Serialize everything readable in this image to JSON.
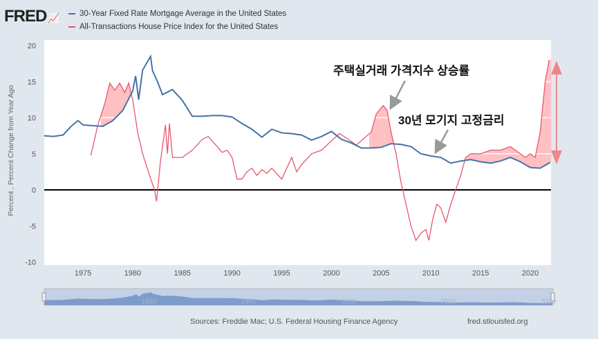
{
  "header": {
    "logo": "FRED"
  },
  "colors": {
    "mortgage": "#4572a7",
    "hpi": "#e8556a",
    "fill": "#ffc0c4",
    "background": "#e1e7ef"
  },
  "chart_data": {
    "type": "line",
    "ylabel": "Percent , Percent Change from Year Ago",
    "ylim": [
      -10,
      20
    ],
    "xlim": [
      1971.1,
      2022.1
    ],
    "yticks": [
      "20",
      "15",
      "10",
      "5",
      "0",
      "-5",
      "-10"
    ],
    "xticks": [
      "1975",
      "1980",
      "1985",
      "1990",
      "1995",
      "2000",
      "2005",
      "2010",
      "2015",
      "2020"
    ],
    "grid": true,
    "legend": "top-left",
    "series": [
      {
        "name": "30-Year Fixed Rate Mortgage Average in the United States",
        "x": [
          1971.1,
          1972,
          1973,
          1973.8,
          1974.5,
          1975,
          1976,
          1977,
          1978,
          1979,
          1980,
          1980.3,
          1980.6,
          1981,
          1981.8,
          1982,
          1982.5,
          1983,
          1984,
          1985,
          1986,
          1987,
          1988,
          1989,
          1990,
          1991,
          1992,
          1993,
          1994,
          1995,
          1996,
          1997,
          1998,
          1999,
          2000,
          2001,
          2002,
          2003,
          2004,
          2005,
          2006,
          2007,
          2008,
          2009,
          2010,
          2011,
          2012,
          2013,
          2014,
          2015,
          2016,
          2017,
          2018,
          2019,
          2020,
          2021,
          2022
        ],
        "y": [
          7.5,
          7.4,
          7.6,
          8.8,
          9.6,
          9.0,
          8.9,
          8.8,
          9.6,
          11,
          13.7,
          15.8,
          12.5,
          16.6,
          18.5,
          16.5,
          15,
          13.2,
          13.9,
          12.4,
          10.2,
          10.2,
          10.3,
          10.3,
          10.1,
          9.2,
          8.4,
          7.3,
          8.4,
          7.9,
          7.8,
          7.6,
          6.9,
          7.4,
          8.1,
          7.0,
          6.5,
          5.8,
          5.8,
          5.9,
          6.4,
          6.3,
          6.0,
          5.0,
          4.7,
          4.5,
          3.7,
          4.0,
          4.2,
          3.9,
          3.7,
          4.0,
          4.5,
          3.9,
          3.1,
          3.0,
          3.8
        ]
      },
      {
        "name": "All-Transactions House Price Index for the United States",
        "x": [
          1975.8,
          1976.5,
          1977.2,
          1977.7,
          1978.2,
          1978.7,
          1979.2,
          1979.6,
          1980,
          1980.5,
          1981,
          1981.7,
          1982.2,
          1982.4,
          1982.8,
          1983.3,
          1983.5,
          1983.7,
          1984,
          1985,
          1986,
          1987,
          1987.6,
          1988.5,
          1989,
          1989.5,
          1990,
          1990.5,
          1991,
          1991.5,
          1992,
          1992.5,
          1993,
          1993.5,
          1994,
          1995,
          1996,
          1996.5,
          1997,
          1998,
          1999,
          2000,
          2000.8,
          2001.5,
          2002.5,
          2003,
          2004,
          2004.5,
          2005.2,
          2005.6,
          2006,
          2006.5,
          2007,
          2007.5,
          2008,
          2008.5,
          2009,
          2009.5,
          2009.8,
          2010.2,
          2010.6,
          2011,
          2011.5,
          2012,
          2012.5,
          2013,
          2013.5,
          2014,
          2015,
          2016,
          2017,
          2018,
          2019,
          2019.5,
          2020,
          2020.5,
          2021,
          2021.5,
          2021.9
        ],
        "y": [
          4.8,
          9,
          12,
          14.8,
          13.8,
          14.8,
          13.5,
          14.8,
          12.5,
          8,
          5,
          2,
          0,
          -1.6,
          4,
          9,
          5,
          9.2,
          4.5,
          4.5,
          5.5,
          7,
          7.4,
          6,
          5.2,
          5.5,
          4.5,
          1.5,
          1.5,
          2.5,
          3,
          2,
          2.8,
          2.3,
          3,
          1.5,
          4.5,
          2.5,
          3.5,
          5,
          5.5,
          6.8,
          7.8,
          7.2,
          6.2,
          6.8,
          8,
          10.5,
          11.7,
          11,
          8,
          5,
          1,
          -2,
          -5,
          -7,
          -6,
          -5.5,
          -7,
          -4,
          -2,
          -2.5,
          -4.5,
          -2,
          0,
          2,
          4.5,
          5,
          5,
          5.5,
          5.5,
          6,
          5,
          4.5,
          5,
          4.5,
          8,
          15,
          18
        ]
      }
    ],
    "annotations": [
      "주택실거래 가격지수 상승률",
      "30년 모기지 고정금리"
    ],
    "highlight_ranges": [
      [
        1976.8,
        1980.2
      ],
      [
        2003.8,
        2006.4
      ],
      [
        2013.4,
        2022.1
      ]
    ],
    "navigator_labels": [
      "1980",
      "1990",
      "2000",
      "2010",
      "2020"
    ]
  },
  "footer": {
    "sources": "Sources: Freddie Mac; U.S. Federal Housing Finance Agency",
    "site": "fred.stlouisfed.org"
  }
}
